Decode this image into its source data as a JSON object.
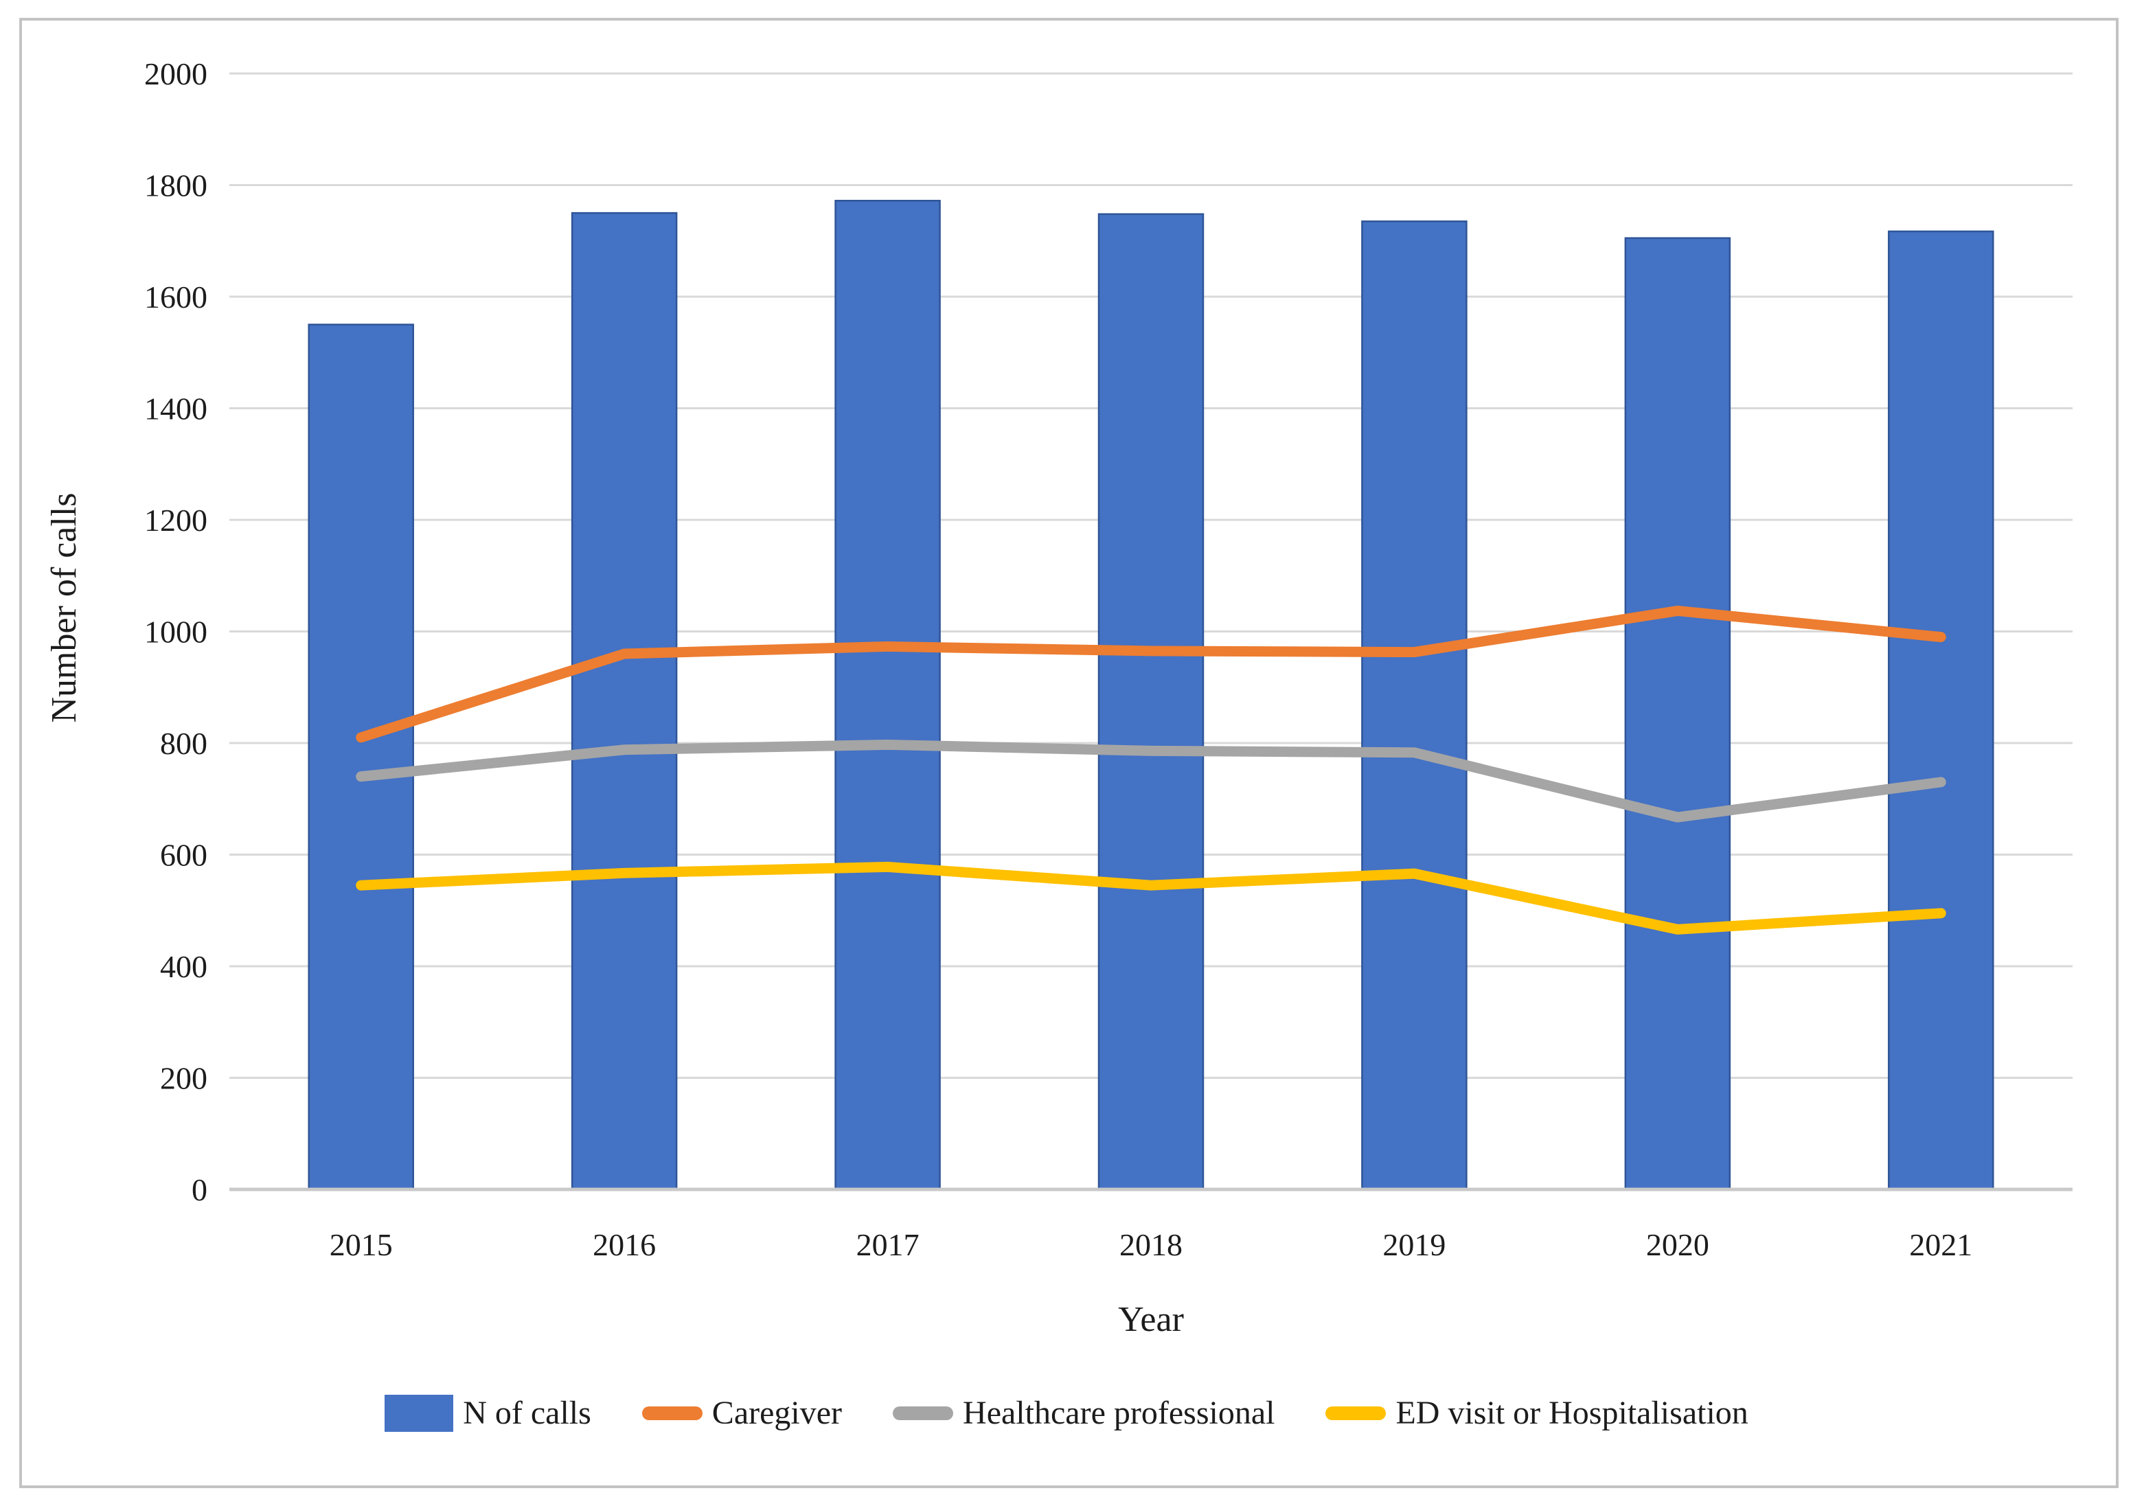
{
  "chart_data": {
    "type": "bar+line",
    "categories": [
      "2015",
      "2016",
      "2017",
      "2018",
      "2019",
      "2020",
      "2021"
    ],
    "series": [
      {
        "name": "N of calls",
        "type": "bar",
        "color": "#4472C4",
        "edge_color": "#2F5597",
        "values": [
          1550,
          1750,
          1772,
          1748,
          1735,
          1705,
          1717
        ]
      },
      {
        "name": "Caregiver",
        "type": "line",
        "color": "#ED7D31",
        "values": [
          810,
          960,
          973,
          965,
          963,
          1037,
          990
        ]
      },
      {
        "name": "Healthcare professional",
        "type": "line",
        "color": "#A5A5A5",
        "values": [
          740,
          788,
          797,
          786,
          783,
          667,
          730
        ]
      },
      {
        "name": "ED visit or Hospitalisation",
        "type": "line",
        "color": "#FFC000",
        "values": [
          545,
          567,
          578,
          545,
          566,
          466,
          495
        ]
      }
    ],
    "xlabel": "Year",
    "ylabel": "Number of calls",
    "ylim": [
      0,
      2000
    ],
    "ytick_step": 200,
    "yticks": [
      0,
      200,
      400,
      600,
      800,
      1000,
      1200,
      1400,
      1600,
      1800,
      2000
    ],
    "grid": true,
    "legend_position": "bottom",
    "colors": {
      "gridline": "#D9D9D9",
      "axis_line": "#C9C9C9",
      "figure_border": "#C3C3C3",
      "text": "#1c1c1c",
      "background": "#FFFFFF"
    }
  }
}
